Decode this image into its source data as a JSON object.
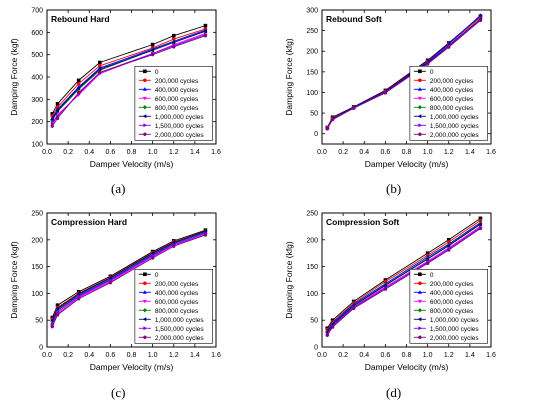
{
  "captions": [
    "(a)",
    "(b)",
    "(c)",
    "(d)"
  ],
  "legend": {
    "labels": [
      "0",
      "200,000 cycles",
      "400,000 cycles",
      "600,000 cycles",
      "800,000 cycles",
      "1,000,000 cycles",
      "1,500,000 cycles",
      "2,000,000 cycles"
    ]
  },
  "series_colors": [
    "#000000",
    "#ff0000",
    "#0000ff",
    "#ff00ff",
    "#008000",
    "#000080",
    "#8000ff",
    "#800080"
  ],
  "series_markers": [
    "square",
    "circle",
    "triangle-up",
    "triangle-down",
    "diamond",
    "triangle-left",
    "triangle-right",
    "hexagon"
  ],
  "chart_data": [
    {
      "type": "line",
      "title": "Rebound Hard",
      "xlabel": "Damper Velocity (m/s)",
      "ylabel": "Damping Force (kgf)",
      "xlim": [
        0,
        1.6
      ],
      "ylim": [
        100,
        700
      ],
      "xticks": [
        0.0,
        0.2,
        0.4,
        0.6,
        0.8,
        1.0,
        1.2,
        1.4,
        1.6
      ],
      "yticks": [
        100,
        200,
        300,
        400,
        500,
        600,
        700
      ],
      "legend_position": "bottom-right",
      "x": [
        0.05,
        0.1,
        0.3,
        0.5,
        1.0,
        1.2,
        1.5
      ],
      "series": [
        {
          "name": "0",
          "values": [
            235,
            280,
            385,
            465,
            545,
            585,
            630
          ]
        },
        {
          "name": "200,000 cycles",
          "values": [
            225,
            265,
            370,
            450,
            530,
            570,
            615
          ]
        },
        {
          "name": "400,000 cycles",
          "values": [
            215,
            255,
            355,
            440,
            525,
            560,
            610
          ]
        },
        {
          "name": "600,000 cycles",
          "values": [
            195,
            230,
            320,
            415,
            505,
            545,
            595
          ]
        },
        {
          "name": "800,000 cycles",
          "values": [
            205,
            245,
            345,
            430,
            520,
            555,
            605
          ]
        },
        {
          "name": "1,000,000 cycles",
          "values": [
            210,
            250,
            350,
            435,
            520,
            555,
            605
          ]
        },
        {
          "name": "1,500,000 cycles",
          "values": [
            190,
            225,
            325,
            420,
            505,
            540,
            590
          ]
        },
        {
          "name": "2,000,000 cycles",
          "values": [
            180,
            215,
            330,
            420,
            500,
            535,
            585
          ]
        }
      ]
    },
    {
      "type": "line",
      "title": "Rebound Soft",
      "xlabel": "Damper Velocity (m/s)",
      "ylabel": "Damping Force (kfg)",
      "xlim": [
        0,
        1.6
      ],
      "ylim": [
        -25,
        300
      ],
      "xticks": [
        0.0,
        0.2,
        0.4,
        0.6,
        0.8,
        1.0,
        1.2,
        1.4,
        1.6
      ],
      "yticks": [
        0,
        50,
        100,
        150,
        200,
        250,
        300
      ],
      "legend_position": "bottom-right",
      "x": [
        0.05,
        0.1,
        0.3,
        0.6,
        1.0,
        1.2,
        1.5
      ],
      "series": [
        {
          "name": "0",
          "values": [
            15,
            40,
            65,
            105,
            178,
            220,
            285
          ]
        },
        {
          "name": "200,000 cycles",
          "values": [
            15,
            38,
            64,
            103,
            176,
            218,
            282
          ]
        },
        {
          "name": "400,000 cycles",
          "values": [
            14,
            37,
            64,
            102,
            175,
            218,
            287
          ]
        },
        {
          "name": "600,000 cycles",
          "values": [
            13,
            35,
            62,
            100,
            170,
            212,
            275
          ]
        },
        {
          "name": "800,000 cycles",
          "values": [
            14,
            36,
            63,
            101,
            172,
            214,
            278
          ]
        },
        {
          "name": "1,000,000 cycles",
          "values": [
            14,
            36,
            63,
            101,
            172,
            214,
            278
          ]
        },
        {
          "name": "1,500,000 cycles",
          "values": [
            13,
            35,
            62,
            100,
            170,
            212,
            276
          ]
        },
        {
          "name": "2,000,000 cycles",
          "values": [
            12,
            34,
            62,
            99,
            169,
            210,
            275
          ]
        }
      ]
    },
    {
      "type": "line",
      "title": "Compression Hard",
      "xlabel": "Damper Velocity (m/s)",
      "ylabel": "Damping Force (kgf)",
      "xlim": [
        0,
        1.6
      ],
      "ylim": [
        0,
        250
      ],
      "xticks": [
        0.0,
        0.2,
        0.4,
        0.6,
        0.8,
        1.0,
        1.2,
        1.4,
        1.6
      ],
      "yticks": [
        0,
        50,
        100,
        150,
        200,
        250
      ],
      "legend_position": "bottom-right",
      "x": [
        0.05,
        0.1,
        0.3,
        0.6,
        1.0,
        1.2,
        1.5
      ],
      "series": [
        {
          "name": "0",
          "values": [
            55,
            78,
            103,
            132,
            178,
            198,
            218
          ]
        },
        {
          "name": "200,000 cycles",
          "values": [
            52,
            74,
            100,
            130,
            176,
            196,
            216
          ]
        },
        {
          "name": "400,000 cycles",
          "values": [
            45,
            68,
            96,
            126,
            172,
            193,
            214
          ]
        },
        {
          "name": "600,000 cycles",
          "values": [
            40,
            62,
            92,
            122,
            168,
            190,
            210
          ]
        },
        {
          "name": "800,000 cycles",
          "values": [
            48,
            70,
            98,
            128,
            174,
            194,
            215
          ]
        },
        {
          "name": "1,000,000 cycles",
          "values": [
            50,
            72,
            99,
            129,
            175,
            195,
            216
          ]
        },
        {
          "name": "1,500,000 cycles",
          "values": [
            42,
            65,
            94,
            124,
            170,
            191,
            212
          ]
        },
        {
          "name": "2,000,000 cycles",
          "values": [
            38,
            60,
            90,
            120,
            166,
            188,
            209
          ]
        }
      ]
    },
    {
      "type": "line",
      "title": "Compression Soft",
      "xlabel": "Damper Velocity (m/s)",
      "ylabel": "Damping Force (kfg)",
      "xlim": [
        0,
        1.6
      ],
      "ylim": [
        0,
        250
      ],
      "xticks": [
        0.0,
        0.2,
        0.4,
        0.6,
        0.8,
        1.0,
        1.2,
        1.4,
        1.6
      ],
      "yticks": [
        0,
        50,
        100,
        150,
        200,
        250
      ],
      "legend_position": "bottom-right",
      "x": [
        0.05,
        0.1,
        0.3,
        0.6,
        1.0,
        1.2,
        1.5
      ],
      "series": [
        {
          "name": "0",
          "values": [
            35,
            50,
            85,
            125,
            175,
            200,
            240
          ]
        },
        {
          "name": "200,000 cycles",
          "values": [
            32,
            47,
            82,
            122,
            171,
            196,
            236
          ]
        },
        {
          "name": "400,000 cycles",
          "values": [
            30,
            45,
            80,
            118,
            168,
            192,
            232
          ]
        },
        {
          "name": "600,000 cycles",
          "values": [
            25,
            40,
            75,
            112,
            160,
            185,
            225
          ]
        },
        {
          "name": "800,000 cycles",
          "values": [
            28,
            43,
            78,
            116,
            165,
            190,
            230
          ]
        },
        {
          "name": "1,000,000 cycles",
          "values": [
            27,
            42,
            77,
            115,
            164,
            189,
            229
          ]
        },
        {
          "name": "1,500,000 cycles",
          "values": [
            24,
            39,
            74,
            110,
            158,
            183,
            223
          ]
        },
        {
          "name": "2,000,000 cycles",
          "values": [
            22,
            37,
            72,
            108,
            156,
            181,
            221
          ]
        }
      ]
    }
  ]
}
